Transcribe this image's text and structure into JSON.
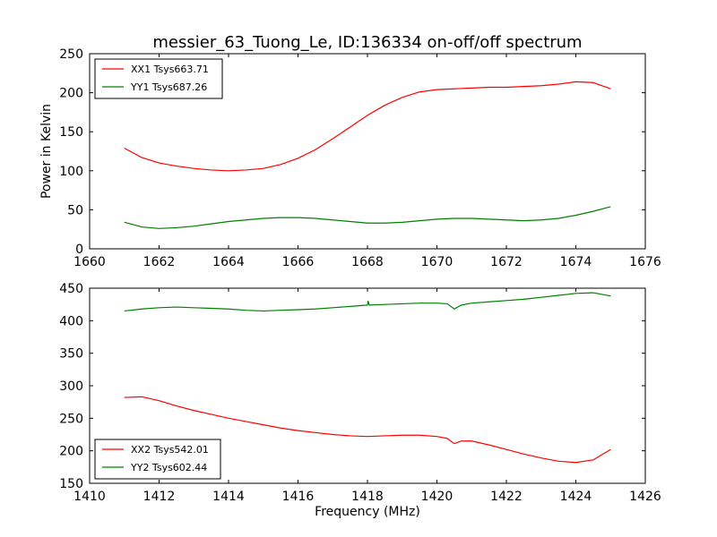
{
  "chart_data": [
    {
      "type": "line",
      "title": "messier_63_Tuong_Le, ID:136334 on-off/off spectrum",
      "xlabel": "",
      "ylabel": "Power in Kelvin",
      "xlim": [
        1660,
        1676
      ],
      "ylim": [
        0,
        250
      ],
      "xticks": [
        1660,
        1662,
        1664,
        1666,
        1668,
        1670,
        1672,
        1674,
        1676
      ],
      "yticks": [
        0,
        50,
        100,
        150,
        200,
        250
      ],
      "grid": false,
      "legend_position": "top-left",
      "series": [
        {
          "name": "XX1 Tsys663.71",
          "color": "#ff0000",
          "x": [
            1661.0,
            1661.5,
            1662.0,
            1662.5,
            1663.0,
            1663.5,
            1664.0,
            1664.5,
            1665.0,
            1665.5,
            1666.0,
            1666.5,
            1667.0,
            1667.5,
            1668.0,
            1668.5,
            1669.0,
            1669.5,
            1670.0,
            1670.5,
            1671.0,
            1671.5,
            1672.0,
            1672.5,
            1673.0,
            1673.5,
            1674.0,
            1674.5,
            1675.0
          ],
          "y": [
            129,
            117,
            110,
            106,
            103,
            101,
            100,
            101,
            103,
            108,
            116,
            127,
            141,
            156,
            171,
            184,
            194,
            201,
            204,
            205,
            206,
            207,
            207,
            208,
            209,
            211,
            214,
            213,
            205
          ]
        },
        {
          "name": "YY1 Tsys687.26",
          "color": "#008000",
          "x": [
            1661.0,
            1661.5,
            1662.0,
            1662.5,
            1663.0,
            1663.5,
            1664.0,
            1664.5,
            1665.0,
            1665.5,
            1666.0,
            1666.5,
            1667.0,
            1667.5,
            1668.0,
            1668.5,
            1669.0,
            1669.5,
            1670.0,
            1670.5,
            1671.0,
            1671.5,
            1672.0,
            1672.5,
            1673.0,
            1673.5,
            1674.0,
            1674.5,
            1675.0
          ],
          "y": [
            34,
            28,
            26,
            27,
            29,
            32,
            35,
            37,
            39,
            40,
            40,
            39,
            37,
            35,
            33,
            33,
            34,
            36,
            38,
            39,
            39,
            38,
            37,
            36,
            37,
            39,
            43,
            48,
            54
          ]
        }
      ]
    },
    {
      "type": "line",
      "title": "",
      "xlabel": "Frequency (MHz)",
      "ylabel": "",
      "xlim": [
        1410,
        1426
      ],
      "ylim": [
        150,
        450
      ],
      "xticks": [
        1410,
        1412,
        1414,
        1416,
        1418,
        1420,
        1422,
        1424,
        1426
      ],
      "yticks": [
        150,
        200,
        250,
        300,
        350,
        400,
        450
      ],
      "grid": false,
      "legend_position": "bottom-left",
      "series": [
        {
          "name": "XX2 Tsys542.01",
          "color": "#ff0000",
          "x": [
            1411.0,
            1411.5,
            1412.0,
            1412.5,
            1413.0,
            1413.5,
            1414.0,
            1414.5,
            1415.0,
            1415.5,
            1416.0,
            1416.5,
            1417.0,
            1417.5,
            1418.0,
            1418.5,
            1419.0,
            1419.5,
            1420.0,
            1420.3,
            1420.5,
            1420.7,
            1421.0,
            1421.5,
            1422.0,
            1422.5,
            1423.0,
            1423.5,
            1424.0,
            1424.5,
            1425.0
          ],
          "y": [
            282,
            283,
            277,
            269,
            262,
            256,
            250,
            245,
            240,
            235,
            231,
            228,
            225,
            223,
            222,
            223,
            224,
            224,
            222,
            219,
            211,
            215,
            215,
            209,
            202,
            195,
            189,
            184,
            182,
            186,
            202
          ]
        },
        {
          "name": "YY2 Tsys602.44",
          "color": "#008000",
          "x": [
            1411.0,
            1411.5,
            1412.0,
            1412.5,
            1413.0,
            1413.5,
            1414.0,
            1414.5,
            1415.0,
            1415.5,
            1416.0,
            1416.5,
            1417.0,
            1417.5,
            1418.0,
            1418.02,
            1418.05,
            1418.5,
            1419.0,
            1419.5,
            1420.0,
            1420.3,
            1420.5,
            1420.7,
            1421.0,
            1421.5,
            1422.0,
            1422.5,
            1423.0,
            1423.5,
            1424.0,
            1424.5,
            1425.0
          ],
          "y": [
            415,
            418,
            420,
            421,
            420,
            419,
            418,
            416,
            415,
            416,
            417,
            418,
            420,
            422,
            424,
            430,
            424,
            425,
            426,
            427,
            427,
            426,
            418,
            424,
            427,
            429,
            431,
            433,
            436,
            439,
            442,
            443,
            438
          ]
        }
      ]
    }
  ]
}
